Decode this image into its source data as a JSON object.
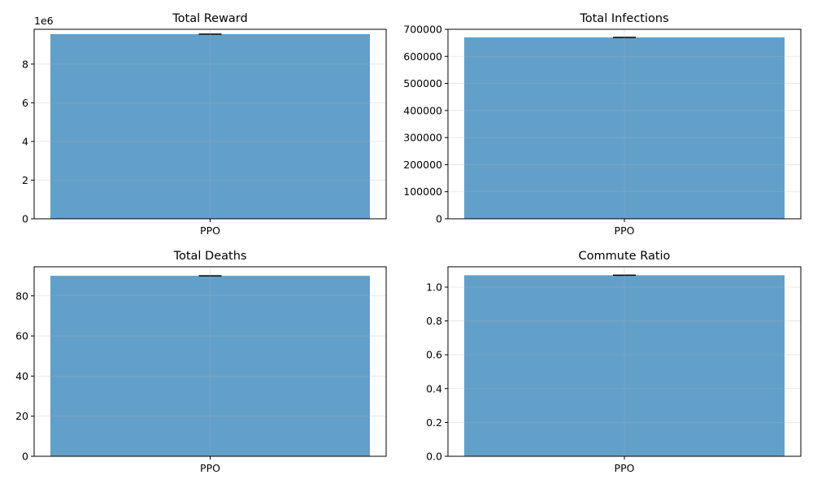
{
  "chart_data": [
    {
      "type": "bar",
      "title": "Total Reward",
      "categories": [
        "PPO"
      ],
      "values": [
        9550000
      ],
      "error": [
        0
      ],
      "ylim": [
        0,
        9800000
      ],
      "yticks": [
        0,
        2000000,
        4000000,
        6000000,
        8000000
      ],
      "ytick_labels": [
        "0",
        "2",
        "4",
        "6",
        "8"
      ],
      "offset_text": "1e6",
      "grid": true,
      "bar_color": "#1f77b4",
      "bar_alpha": 0.7
    },
    {
      "type": "bar",
      "title": "Total Infections",
      "categories": [
        "PPO"
      ],
      "values": [
        670000
      ],
      "error": [
        0
      ],
      "ylim": [
        0,
        700000
      ],
      "yticks": [
        0,
        100000,
        200000,
        300000,
        400000,
        500000,
        600000,
        700000
      ],
      "ytick_labels": [
        "0",
        "100000",
        "200000",
        "300000",
        "400000",
        "500000",
        "600000",
        "700000"
      ],
      "offset_text": "",
      "grid": true,
      "bar_color": "#1f77b4",
      "bar_alpha": 0.7
    },
    {
      "type": "bar",
      "title": "Total Deaths",
      "categories": [
        "PPO"
      ],
      "values": [
        90
      ],
      "error": [
        0
      ],
      "ylim": [
        0,
        94.5
      ],
      "yticks": [
        0,
        20,
        40,
        60,
        80
      ],
      "ytick_labels": [
        "0",
        "20",
        "40",
        "60",
        "80"
      ],
      "offset_text": "",
      "grid": true,
      "bar_color": "#1f77b4",
      "bar_alpha": 0.7
    },
    {
      "type": "bar",
      "title": "Commute Ratio",
      "categories": [
        "PPO"
      ],
      "values": [
        1.07
      ],
      "error": [
        0
      ],
      "ylim": [
        0,
        1.12
      ],
      "yticks": [
        0,
        0.2,
        0.4,
        0.6,
        0.8,
        1.0
      ],
      "ytick_labels": [
        "0.0",
        "0.2",
        "0.4",
        "0.6",
        "0.8",
        "1.0"
      ],
      "offset_text": "",
      "grid": true,
      "bar_color": "#1f77b4",
      "bar_alpha": 0.7
    }
  ]
}
